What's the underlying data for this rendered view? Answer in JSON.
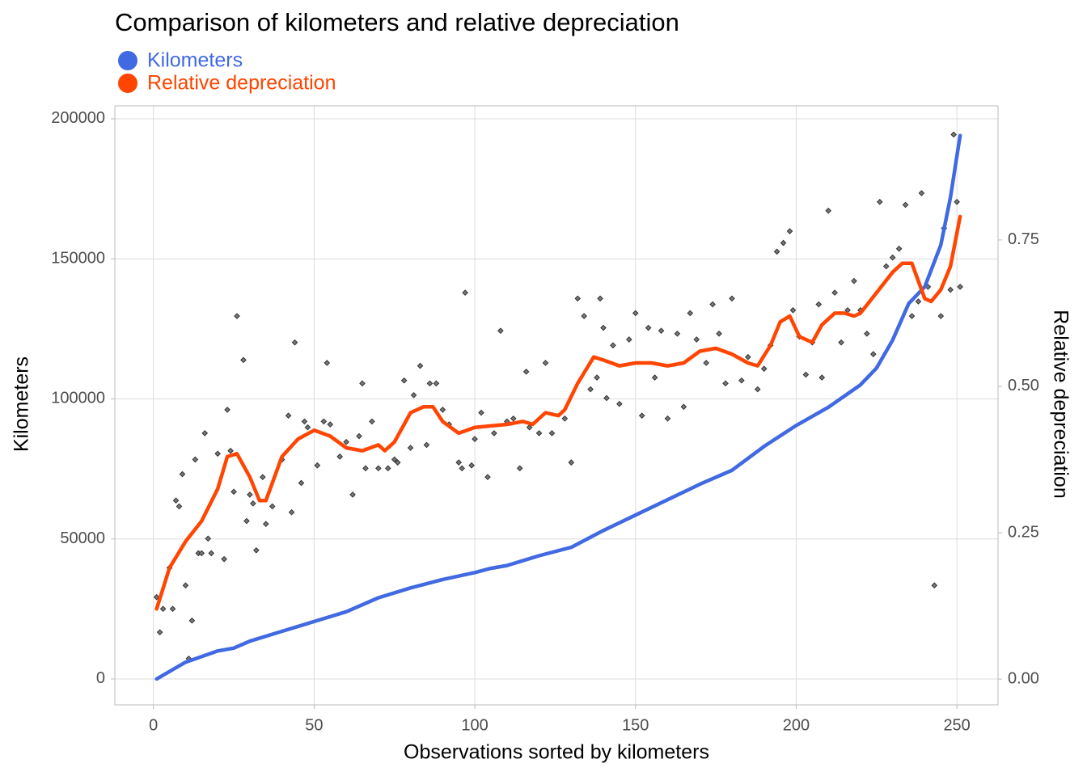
{
  "chart_data": {
    "type": "line",
    "title": "Comparison of kilometers and relative depreciation",
    "x_label": "Observations sorted by kilometers",
    "y_label": "Kilometers",
    "y2_label": "Relative depreciation",
    "xlim": [
      -12,
      262.8
    ],
    "xticks": [
      0,
      50,
      100,
      150,
      200,
      250
    ],
    "ylim": [
      -9250,
      204600
    ],
    "yticks": [
      0,
      50000,
      100000,
      150000,
      200000
    ],
    "y2lim": [
      -0.044,
      0.979
    ],
    "y2ticks": [
      {
        "value": 0,
        "label": "0.00"
      },
      {
        "value": 0.25,
        "label": "0.25"
      },
      {
        "value": 0.5,
        "label": "0.50"
      },
      {
        "value": 0.75,
        "label": "0.75"
      }
    ],
    "grid": true,
    "legend": "top-left",
    "series": [
      {
        "name": "Kilometers",
        "color": "#4169e1",
        "axis": "y",
        "x": [
          1,
          10,
          20,
          25,
          30,
          40,
          50,
          60,
          70,
          80,
          90,
          100,
          105,
          110,
          120,
          130,
          140,
          150,
          160,
          170,
          180,
          190,
          200,
          210,
          220,
          225,
          230,
          235,
          240,
          245,
          248,
          251
        ],
        "values": [
          0,
          6000,
          10000,
          11000,
          13500,
          17000,
          20500,
          24000,
          29000,
          32500,
          35500,
          38000,
          39500,
          40500,
          44000,
          47000,
          53000,
          58500,
          64000,
          69500,
          74500,
          83000,
          90500,
          97000,
          105000,
          111000,
          121000,
          134000,
          140000,
          155000,
          172000,
          194000
        ]
      },
      {
        "name": "Relative depreciation",
        "color": "#ff4500",
        "axis": "y2",
        "x": [
          1,
          5,
          10,
          15,
          20,
          23,
          26,
          30,
          33,
          35,
          40,
          45,
          50,
          55,
          60,
          65,
          70,
          72,
          75,
          80,
          84,
          87,
          90,
          95,
          100,
          110,
          115,
          118,
          122,
          126,
          128,
          132,
          137,
          140,
          145,
          150,
          155,
          160,
          165,
          170,
          175,
          180,
          185,
          188,
          192,
          195,
          198,
          201,
          205,
          208,
          212,
          215,
          218,
          220,
          225,
          230,
          233,
          236,
          240,
          242,
          245,
          248,
          251
        ],
        "values": [
          0.12,
          0.19,
          0.235,
          0.27,
          0.325,
          0.38,
          0.385,
          0.345,
          0.305,
          0.305,
          0.38,
          0.41,
          0.425,
          0.415,
          0.395,
          0.39,
          0.4,
          0.39,
          0.405,
          0.455,
          0.465,
          0.465,
          0.44,
          0.42,
          0.43,
          0.435,
          0.44,
          0.435,
          0.455,
          0.45,
          0.46,
          0.505,
          0.55,
          0.545,
          0.535,
          0.54,
          0.54,
          0.535,
          0.54,
          0.56,
          0.565,
          0.555,
          0.54,
          0.535,
          0.57,
          0.61,
          0.62,
          0.585,
          0.575,
          0.605,
          0.625,
          0.625,
          0.62,
          0.625,
          0.66,
          0.695,
          0.71,
          0.71,
          0.65,
          0.645,
          0.665,
          0.705,
          0.79
        ]
      }
    ],
    "points": {
      "color": "#333333",
      "axis": "y2",
      "x": [
        1,
        2,
        3,
        5,
        6,
        7,
        8,
        9,
        10,
        11,
        12,
        13,
        14,
        15,
        16,
        17,
        18,
        20,
        22,
        23,
        24,
        25,
        26,
        28,
        29,
        30,
        31,
        32,
        34,
        35,
        37,
        40,
        42,
        43,
        44,
        46,
        47,
        48,
        51,
        53,
        54,
        55,
        58,
        60,
        62,
        64,
        65,
        66,
        68,
        70,
        73,
        75,
        76,
        78,
        80,
        81,
        83,
        85,
        86,
        88,
        90,
        92,
        95,
        96,
        97,
        99,
        100,
        102,
        104,
        106,
        108,
        110,
        112,
        114,
        116,
        117,
        120,
        122,
        124,
        128,
        130,
        132,
        134,
        136,
        138,
        139,
        140,
        141,
        143,
        145,
        148,
        150,
        152,
        154,
        156,
        158,
        160,
        163,
        165,
        167,
        169,
        172,
        174,
        176,
        178,
        180,
        183,
        185,
        188,
        190,
        192,
        194,
        196,
        198,
        199,
        201,
        203,
        205,
        207,
        208,
        210,
        212,
        214,
        216,
        218,
        220,
        222,
        224,
        226,
        228,
        230,
        232,
        234,
        236,
        238,
        239,
        241,
        243,
        245,
        246,
        248,
        249,
        250,
        251
      ],
      "values": [
        0.14,
        0.08,
        0.12,
        0.19,
        0.12,
        0.305,
        0.295,
        0.35,
        0.16,
        0.035,
        0.1,
        0.375,
        0.215,
        0.215,
        0.42,
        0.24,
        0.215,
        0.385,
        0.205,
        0.46,
        0.39,
        0.32,
        0.62,
        0.545,
        0.27,
        0.315,
        0.3,
        0.22,
        0.345,
        0.265,
        0.295,
        0.375,
        0.45,
        0.285,
        0.575,
        0.335,
        0.44,
        0.43,
        0.365,
        0.44,
        0.54,
        0.435,
        0.38,
        0.405,
        0.315,
        0.415,
        0.505,
        0.36,
        0.44,
        0.36,
        0.36,
        0.375,
        0.37,
        0.51,
        0.395,
        0.485,
        0.535,
        0.4,
        0.505,
        0.505,
        0.46,
        0.435,
        0.37,
        0.36,
        0.66,
        0.365,
        0.41,
        0.455,
        0.345,
        0.42,
        0.595,
        0.44,
        0.445,
        0.36,
        0.525,
        0.43,
        0.42,
        0.54,
        0.42,
        0.445,
        0.37,
        0.65,
        0.62,
        0.495,
        0.515,
        0.65,
        0.6,
        0.48,
        0.57,
        0.47,
        0.58,
        0.625,
        0.45,
        0.6,
        0.515,
        0.595,
        0.445,
        0.59,
        0.465,
        0.625,
        0.58,
        0.54,
        0.64,
        0.59,
        0.505,
        0.65,
        0.51,
        0.55,
        0.495,
        0.53,
        0.57,
        0.73,
        0.745,
        0.765,
        0.63,
        0.585,
        0.52,
        0.575,
        0.64,
        0.515,
        0.8,
        0.66,
        0.575,
        0.63,
        0.68,
        0.63,
        0.59,
        0.555,
        0.815,
        0.705,
        0.72,
        0.735,
        0.81,
        0.62,
        0.645,
        0.83,
        0.67,
        0.16,
        0.62,
        0.77,
        0.665,
        0.93,
        0.815,
        0.67
      ]
    }
  }
}
